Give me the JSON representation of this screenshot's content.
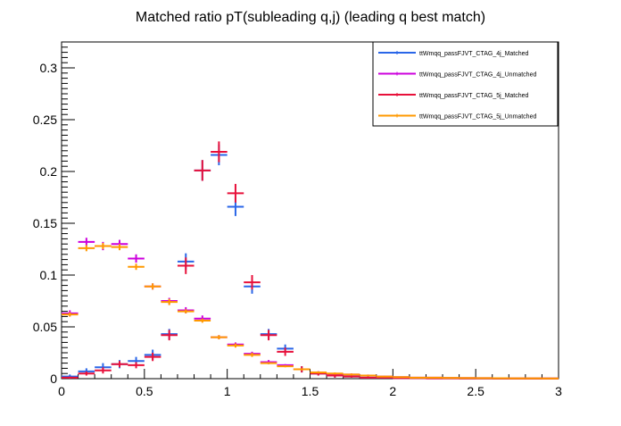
{
  "chart_data": {
    "type": "scatter",
    "title": "Matched ratio pT(subleading q,j) (leading q  best match)",
    "xlabel": "",
    "ylabel": "",
    "xlim": [
      0,
      3
    ],
    "ylim": [
      0,
      0.325
    ],
    "x_ticks": [
      0,
      0.5,
      1,
      1.5,
      2,
      2.5,
      3
    ],
    "x_tick_labels": [
      "0",
      "0.5",
      "1",
      "1.5",
      "2",
      "2.5",
      "3"
    ],
    "y_ticks": [
      0,
      0.05,
      0.1,
      0.15,
      0.2,
      0.25,
      0.3
    ],
    "y_tick_labels": [
      "0",
      "0.05",
      "0.1",
      "0.15",
      "0.2",
      "0.25",
      "0.3"
    ],
    "bin_width": 0.1,
    "grid": false,
    "legend_position": "top-right",
    "x": [
      0.05,
      0.15,
      0.25,
      0.35,
      0.45,
      0.55,
      0.65,
      0.75,
      0.85,
      0.95,
      1.05,
      1.15,
      1.25,
      1.35,
      1.45,
      1.55,
      1.65,
      1.75,
      1.85,
      1.95,
      2.05,
      2.15,
      2.25,
      2.35,
      2.45,
      2.55,
      2.65,
      2.75,
      2.85,
      2.95
    ],
    "series": [
      {
        "name": "ttWmqq_passFJVT_CTAG_4j_Matched",
        "color": "#2a66e8",
        "values": [
          0.002,
          0.007,
          0.011,
          0.014,
          0.017,
          0.023,
          0.043,
          0.113,
          0.201,
          0.216,
          0.166,
          0.089,
          0.043,
          0.029,
          0.009,
          0.005,
          0.003,
          0.002,
          0.001,
          0.001,
          0.0005,
          0.0005,
          0.0003,
          0.0003,
          0.0002,
          0.0002,
          0.0001,
          0.0001,
          0.0001,
          0.0001
        ],
        "errors": [
          0.002,
          0.003,
          0.004,
          0.004,
          0.004,
          0.005,
          0.005,
          0.008,
          0.01,
          0.01,
          0.009,
          0.007,
          0.005,
          0.004,
          0.003,
          0.002,
          0.002,
          0.001,
          0.001,
          0.001,
          0.0005,
          0.0005,
          0.0004,
          0.0004,
          0.0003,
          0.0003,
          0.0002,
          0.0002,
          0.0002,
          0.0002
        ]
      },
      {
        "name": "ttWmqq_passFJVT_CTAG_4j_Unmatched",
        "color": "#cc00dd",
        "values": [
          0.063,
          0.132,
          0.128,
          0.13,
          0.116,
          0.089,
          0.075,
          0.066,
          0.058,
          0.04,
          0.033,
          0.024,
          0.016,
          0.013,
          0.009,
          0.006,
          0.004,
          0.004,
          0.003,
          0.002,
          0.0015,
          0.001,
          0.001,
          0.0008,
          0.0006,
          0.0005,
          0.0004,
          0.0003,
          0.0003,
          0.0002
        ],
        "errors": [
          0.003,
          0.004,
          0.004,
          0.004,
          0.004,
          0.003,
          0.003,
          0.003,
          0.003,
          0.002,
          0.002,
          0.002,
          0.002,
          0.001,
          0.001,
          0.001,
          0.001,
          0.001,
          0.001,
          0.0008,
          0.0006,
          0.0005,
          0.0005,
          0.0004,
          0.0004,
          0.0003,
          0.0003,
          0.0003,
          0.0003,
          0.0002
        ]
      },
      {
        "name": "ttWmqq_passFJVT_CTAG_5j_Matched",
        "color": "#e8103a",
        "values": [
          0.001,
          0.005,
          0.008,
          0.014,
          0.013,
          0.021,
          0.042,
          0.109,
          0.201,
          0.219,
          0.179,
          0.093,
          0.042,
          0.026,
          0.009,
          0.005,
          0.003,
          0.002,
          0.001,
          0.001,
          0.0005,
          0.0005,
          0.0003,
          0.0003,
          0.0002,
          0.0002,
          0.0001,
          0.0001,
          0.0001,
          0.0001
        ],
        "errors": [
          0.001,
          0.002,
          0.003,
          0.003,
          0.003,
          0.004,
          0.005,
          0.008,
          0.01,
          0.01,
          0.009,
          0.007,
          0.005,
          0.004,
          0.003,
          0.002,
          0.002,
          0.001,
          0.001,
          0.001,
          0.0005,
          0.0005,
          0.0004,
          0.0004,
          0.0003,
          0.0003,
          0.0002,
          0.0002,
          0.0002,
          0.0002
        ]
      },
      {
        "name": "ttWmqq_passFJVT_CTAG_5j_Unmatched",
        "color": "#ff9900",
        "values": [
          0.062,
          0.126,
          0.128,
          0.127,
          0.108,
          0.089,
          0.074,
          0.065,
          0.056,
          0.04,
          0.032,
          0.023,
          0.015,
          0.012,
          0.009,
          0.006,
          0.005,
          0.004,
          0.003,
          0.002,
          0.0015,
          0.001,
          0.001,
          0.0008,
          0.0006,
          0.0005,
          0.0004,
          0.0003,
          0.0003,
          0.0002
        ],
        "errors": [
          0.002,
          0.003,
          0.003,
          0.003,
          0.003,
          0.003,
          0.003,
          0.002,
          0.002,
          0.002,
          0.002,
          0.002,
          0.001,
          0.001,
          0.001,
          0.001,
          0.001,
          0.001,
          0.0008,
          0.0006,
          0.0005,
          0.0005,
          0.0004,
          0.0004,
          0.0003,
          0.0003,
          0.0003,
          0.0002,
          0.0002,
          0.0002
        ]
      }
    ]
  }
}
